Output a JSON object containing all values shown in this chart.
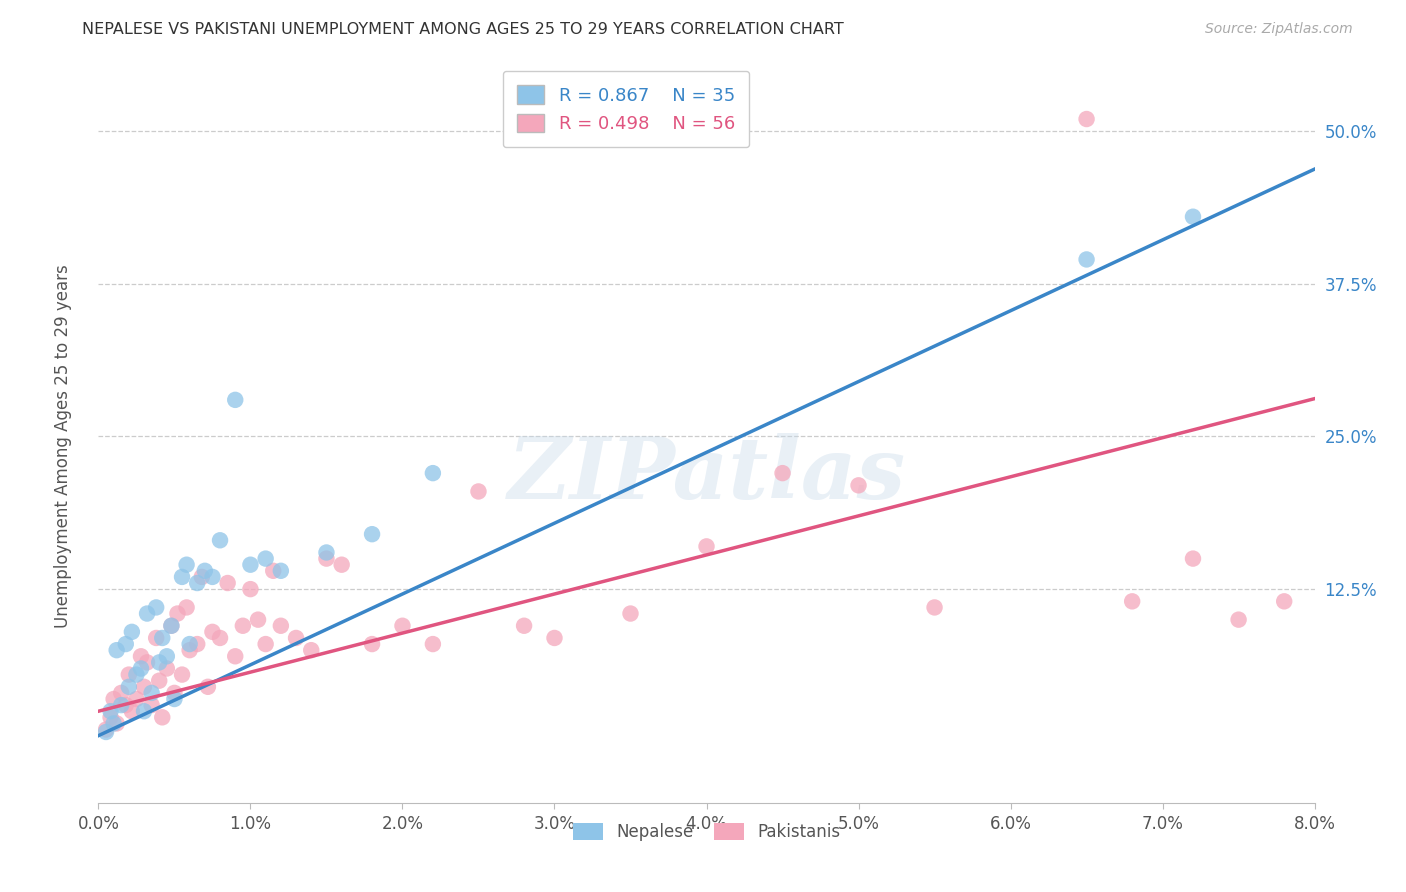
{
  "title": "NEPALESE VS PAKISTANI UNEMPLOYMENT AMONG AGES 25 TO 29 YEARS CORRELATION CHART",
  "source": "Source: ZipAtlas.com",
  "ylabel": "Unemployment Among Ages 25 to 29 years",
  "x_tick_labels": [
    "0.0%",
    "1.0%",
    "2.0%",
    "3.0%",
    "4.0%",
    "5.0%",
    "6.0%",
    "7.0%",
    "8.0%"
  ],
  "x_tick_values": [
    0.0,
    1.0,
    2.0,
    3.0,
    4.0,
    5.0,
    6.0,
    7.0,
    8.0
  ],
  "y_tick_labels": [
    "12.5%",
    "25.0%",
    "37.5%",
    "50.0%"
  ],
  "y_tick_values": [
    12.5,
    25.0,
    37.5,
    50.0
  ],
  "xlim": [
    0.0,
    8.0
  ],
  "ylim": [
    -5.0,
    56.0
  ],
  "blue_R": "0.867",
  "blue_N": "35",
  "pink_R": "0.498",
  "pink_N": "56",
  "blue_color": "#8ec4e8",
  "pink_color": "#f4a7bb",
  "blue_line_color": "#3a86c8",
  "pink_line_color": "#e05580",
  "watermark_text": "ZIPatlas",
  "legend_label_blue": "Nepalese",
  "legend_label_pink": "Pakistanis",
  "blue_line_slope": 5.8,
  "blue_line_intercept": 0.5,
  "pink_line_slope": 3.2,
  "pink_line_intercept": 2.5,
  "nepalese_x": [
    0.05,
    0.08,
    0.1,
    0.12,
    0.15,
    0.18,
    0.2,
    0.22,
    0.25,
    0.28,
    0.3,
    0.32,
    0.35,
    0.38,
    0.4,
    0.42,
    0.45,
    0.48,
    0.5,
    0.55,
    0.58,
    0.6,
    0.65,
    0.7,
    0.75,
    0.8,
    0.9,
    1.0,
    1.1,
    1.2,
    1.5,
    1.8,
    2.2,
    6.5,
    7.2
  ],
  "nepalese_y": [
    0.8,
    2.5,
    1.5,
    7.5,
    3.0,
    8.0,
    4.5,
    9.0,
    5.5,
    6.0,
    2.5,
    10.5,
    4.0,
    11.0,
    6.5,
    8.5,
    7.0,
    9.5,
    3.5,
    13.5,
    14.5,
    8.0,
    13.0,
    14.0,
    13.5,
    16.5,
    28.0,
    14.5,
    15.0,
    14.0,
    15.5,
    17.0,
    22.0,
    39.5,
    43.0
  ],
  "pakistani_x": [
    0.05,
    0.08,
    0.1,
    0.12,
    0.15,
    0.18,
    0.2,
    0.22,
    0.25,
    0.28,
    0.3,
    0.32,
    0.35,
    0.38,
    0.4,
    0.42,
    0.45,
    0.48,
    0.5,
    0.52,
    0.55,
    0.58,
    0.6,
    0.65,
    0.68,
    0.72,
    0.75,
    0.8,
    0.85,
    0.9,
    0.95,
    1.0,
    1.05,
    1.1,
    1.15,
    1.2,
    1.3,
    1.4,
    1.5,
    1.6,
    1.8,
    2.0,
    2.2,
    2.5,
    2.8,
    3.0,
    3.5,
    4.0,
    4.5,
    5.0,
    5.5,
    6.5,
    6.8,
    7.2,
    7.5,
    7.8
  ],
  "pakistani_y": [
    1.0,
    2.0,
    3.5,
    1.5,
    4.0,
    3.0,
    5.5,
    2.5,
    3.5,
    7.0,
    4.5,
    6.5,
    3.0,
    8.5,
    5.0,
    2.0,
    6.0,
    9.5,
    4.0,
    10.5,
    5.5,
    11.0,
    7.5,
    8.0,
    13.5,
    4.5,
    9.0,
    8.5,
    13.0,
    7.0,
    9.5,
    12.5,
    10.0,
    8.0,
    14.0,
    9.5,
    8.5,
    7.5,
    15.0,
    14.5,
    8.0,
    9.5,
    8.0,
    20.5,
    9.5,
    8.5,
    10.5,
    16.0,
    22.0,
    21.0,
    11.0,
    51.0,
    11.5,
    15.0,
    10.0,
    11.5
  ]
}
